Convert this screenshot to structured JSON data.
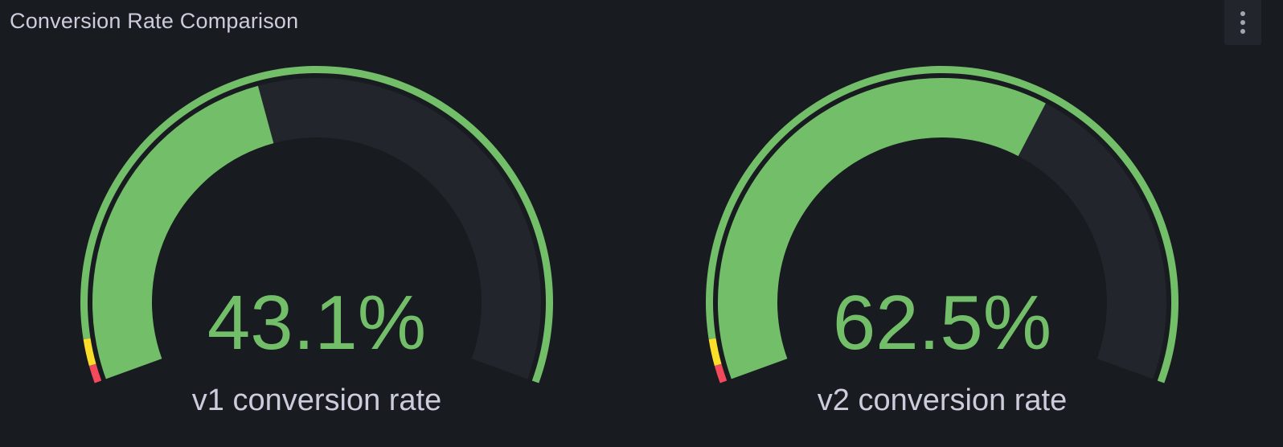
{
  "panel": {
    "title": "Conversion Rate Comparison",
    "menu_icon": "kebab-menu-icon"
  },
  "colors": {
    "background": "#181b1f",
    "track": "#22252b",
    "ok": "#73bf69",
    "warning": "#fade2a",
    "critical": "#f2495c",
    "text": "#ccccdc"
  },
  "chart_data": {
    "type": "gauge",
    "min": 0,
    "max": 100,
    "unit": "%",
    "thresholds": [
      {
        "from": 0,
        "to": 2,
        "color": "#f2495c"
      },
      {
        "from": 2,
        "to": 5,
        "color": "#fade2a"
      },
      {
        "from": 5,
        "to": 100,
        "color": "#73bf69"
      }
    ],
    "gauges": [
      {
        "label": "v1 conversion rate",
        "value": 43.1,
        "display": "43.1%"
      },
      {
        "label": "v2 conversion rate",
        "value": 62.5,
        "display": "62.5%"
      }
    ]
  }
}
